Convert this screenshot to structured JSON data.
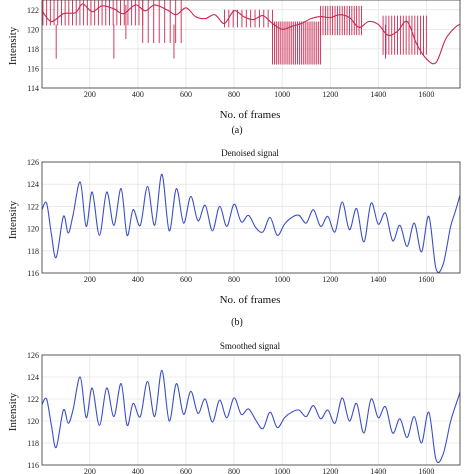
{
  "chart_data": [
    {
      "type": "line",
      "caption": "(a)",
      "title": "",
      "xlabel": "No. of frames",
      "ylabel": "Intensity",
      "xlim": [
        1,
        1740
      ],
      "ylim": [
        114,
        123
      ],
      "xticks": [
        200,
        400,
        600,
        800,
        1000,
        1200,
        1400,
        1600
      ],
      "yticks": [
        114,
        116,
        118,
        120,
        122
      ],
      "grid": true,
      "color": "#c8284f",
      "series": [
        {
          "x": [
            1,
            40,
            90,
            140,
            170,
            210,
            250,
            300,
            340,
            390,
            430,
            470,
            520,
            560,
            600,
            640,
            680,
            720,
            760,
            800,
            840,
            880,
            920,
            960,
            1000,
            1040,
            1080,
            1120,
            1160,
            1200,
            1240,
            1280,
            1320,
            1360,
            1400,
            1440,
            1480,
            1520,
            1560,
            1600,
            1640,
            1680,
            1720,
            1740
          ],
          "values": [
            121.9,
            120.8,
            121.6,
            121.7,
            122.6,
            121.8,
            122.4,
            122.1,
            121.6,
            122.5,
            121.9,
            122.5,
            122.0,
            121.5,
            122.2,
            121.3,
            121.1,
            121.5,
            120.6,
            121.9,
            121.3,
            121.0,
            121.4,
            120.6,
            120.0,
            120.3,
            120.6,
            121.1,
            121.3,
            121.2,
            121.5,
            121.2,
            120.2,
            120.8,
            120.5,
            119.4,
            119.8,
            120.8,
            118.5,
            117.0,
            116.6,
            119.0,
            120.2,
            120.5
          ],
          "spikes": [
            {
              "x_start": 5,
              "x_end": 420,
              "count": 28,
              "low": 120.4,
              "high": 123.0
            },
            {
              "x_start": 420,
              "x_end": 580,
              "count": 8,
              "low": 118.6,
              "high": 123.0
            },
            {
              "x_start": 760,
              "x_end": 960,
              "count": 12,
              "low": 120.2,
              "high": 122.0
            },
            {
              "x_start": 960,
              "x_end": 1160,
              "count": 26,
              "low": 116.4,
              "high": 120.8
            },
            {
              "x_start": 1160,
              "x_end": 1330,
              "count": 18,
              "low": 119.4,
              "high": 122.4
            },
            {
              "x_start": 1420,
              "x_end": 1600,
              "count": 16,
              "low": 117.4,
              "high": 121.4
            }
          ],
          "outliers": [
            {
              "x": 60,
              "y": 117.0
            },
            {
              "x": 300,
              "y": 117.0
            },
            {
              "x": 350,
              "y": 119.0
            },
            {
              "x": 550,
              "y": 117.0
            },
            {
              "x": 1430,
              "y": 117.0
            }
          ]
        }
      ]
    },
    {
      "type": "line",
      "caption": "(b)",
      "title": "Denoised signal",
      "xlabel": "No. of frames",
      "ylabel": "Intensity",
      "xlim": [
        1,
        1740
      ],
      "ylim": [
        116,
        126
      ],
      "xticks": [
        200,
        400,
        600,
        800,
        1000,
        1200,
        1400,
        1600
      ],
      "yticks": [
        116,
        118,
        120,
        122,
        124,
        126
      ],
      "grid": true,
      "color": "#3b4fc4",
      "series": [
        {
          "x": [
            1,
            20,
            40,
            60,
            90,
            110,
            130,
            160,
            185,
            210,
            240,
            270,
            300,
            330,
            355,
            380,
            410,
            440,
            470,
            500,
            530,
            560,
            590,
            620,
            650,
            680,
            710,
            740,
            770,
            800,
            830,
            860,
            890,
            920,
            950,
            980,
            1010,
            1040,
            1070,
            1100,
            1130,
            1160,
            1190,
            1220,
            1250,
            1280,
            1310,
            1340,
            1370,
            1400,
            1430,
            1460,
            1490,
            1520,
            1550,
            1580,
            1610,
            1640,
            1670,
            1700,
            1720,
            1740
          ],
          "values": [
            121.7,
            122.3,
            119.5,
            117.4,
            121.1,
            119.6,
            121.2,
            124.2,
            120.2,
            123.3,
            119.4,
            123.3,
            120.3,
            123.6,
            119.4,
            121.7,
            120.3,
            123.8,
            120.3,
            124.9,
            119.8,
            123.6,
            120.5,
            122.9,
            120.7,
            122.1,
            119.8,
            122.0,
            120.2,
            122.2,
            120.6,
            121.2,
            120.1,
            119.7,
            121.0,
            119.4,
            120.4,
            121.0,
            121.2,
            120.5,
            121.7,
            120.2,
            121.1,
            119.7,
            122.4,
            119.9,
            121.8,
            118.8,
            122.3,
            120.4,
            121.4,
            118.9,
            120.3,
            118.4,
            120.5,
            117.9,
            121.1,
            116.4,
            116.8,
            120.1,
            121.5,
            123.0
          ]
        }
      ]
    },
    {
      "type": "line",
      "caption": "",
      "title": "Smoothed signal",
      "xlabel": "",
      "ylabel": "Intensity",
      "xlim": [
        1,
        1740
      ],
      "ylim": [
        116,
        126
      ],
      "xticks": [
        200,
        400,
        600,
        800,
        1000,
        1200,
        1400,
        1600
      ],
      "yticks": [
        116,
        118,
        120,
        122,
        124,
        126
      ],
      "grid": true,
      "color": "#3b4fc4",
      "series": [
        {
          "x": [
            1,
            20,
            40,
            60,
            90,
            110,
            130,
            160,
            185,
            210,
            240,
            270,
            300,
            330,
            355,
            380,
            410,
            440,
            470,
            500,
            530,
            560,
            590,
            620,
            650,
            680,
            710,
            740,
            770,
            800,
            830,
            860,
            890,
            920,
            950,
            980,
            1010,
            1040,
            1070,
            1100,
            1130,
            1160,
            1190,
            1220,
            1250,
            1280,
            1310,
            1340,
            1370,
            1400,
            1430,
            1460,
            1490,
            1520,
            1550,
            1580,
            1610,
            1640,
            1670,
            1700,
            1720,
            1740
          ],
          "values": [
            121.5,
            122.0,
            119.6,
            117.6,
            121.0,
            119.8,
            121.0,
            124.0,
            120.3,
            123.0,
            119.6,
            123.0,
            120.4,
            123.4,
            119.6,
            121.6,
            120.4,
            123.6,
            120.4,
            124.6,
            120.0,
            123.4,
            120.6,
            122.7,
            120.7,
            122.0,
            119.9,
            121.9,
            120.3,
            122.1,
            120.6,
            121.1,
            120.1,
            119.3,
            120.8,
            119.4,
            120.3,
            120.8,
            121.0,
            120.4,
            121.4,
            120.2,
            121.0,
            119.8,
            122.1,
            120.0,
            121.6,
            118.9,
            122.0,
            120.3,
            121.3,
            118.9,
            120.2,
            118.5,
            120.4,
            118.0,
            120.8,
            116.5,
            117.0,
            119.9,
            121.3,
            122.6
          ]
        }
      ]
    }
  ]
}
